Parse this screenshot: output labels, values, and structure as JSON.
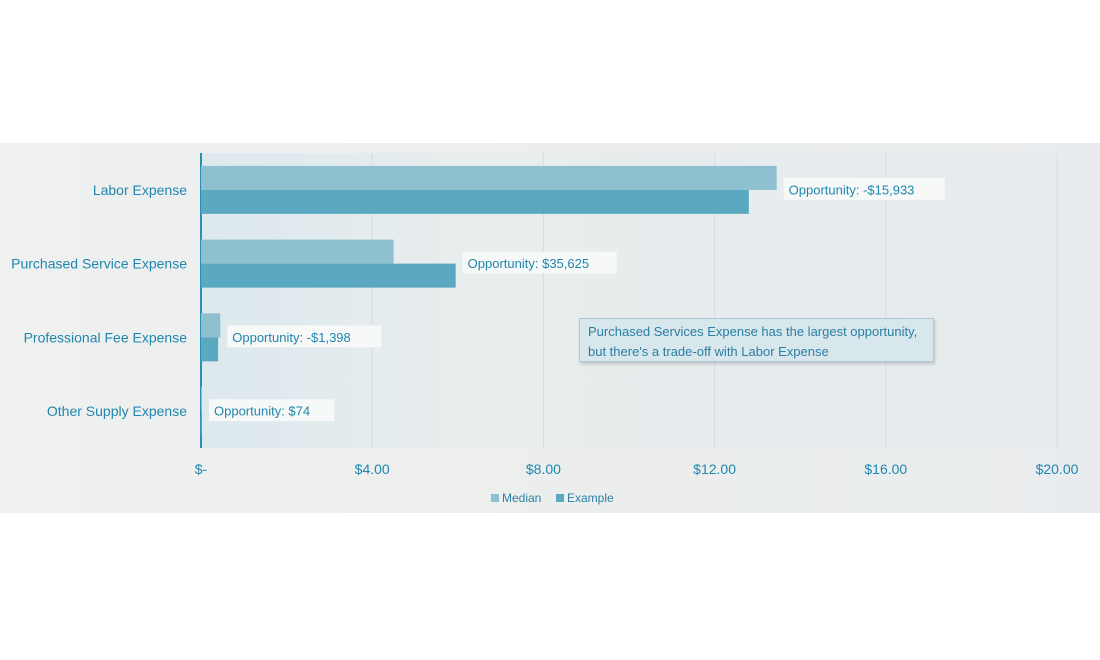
{
  "chart_data": {
    "type": "bar",
    "orientation": "horizontal",
    "categories": [
      "Labor Expense",
      "Purchased Service Expense",
      "Professional Fee Expense",
      "Other Supply Expense"
    ],
    "series": [
      {
        "name": "Median",
        "color": "#8fc0cf",
        "values": [
          13.45,
          4.5,
          0.45,
          0.02
        ]
      },
      {
        "name": "Example",
        "color": "#5aa9c1",
        "values": [
          12.8,
          5.95,
          0.4,
          0.02
        ]
      }
    ],
    "annotations": [
      "Opportunity: -$15,933",
      "Opportunity: $35,625",
      "Opportunity: -$1,398",
      "Opportunity: $74"
    ],
    "xlim": [
      0,
      20
    ],
    "xticks": [
      0,
      4,
      8,
      12,
      16,
      20
    ],
    "xtick_labels": [
      "$-",
      "$4.00",
      "$8.00",
      "$12.00",
      "$16.00",
      "$20.00"
    ],
    "grid": true,
    "legend": "bottom-center",
    "callout": {
      "lines": [
        "Purchased Services Expense has the largest opportunity,",
        "but there's a trade-off with Labor Expense"
      ]
    }
  }
}
